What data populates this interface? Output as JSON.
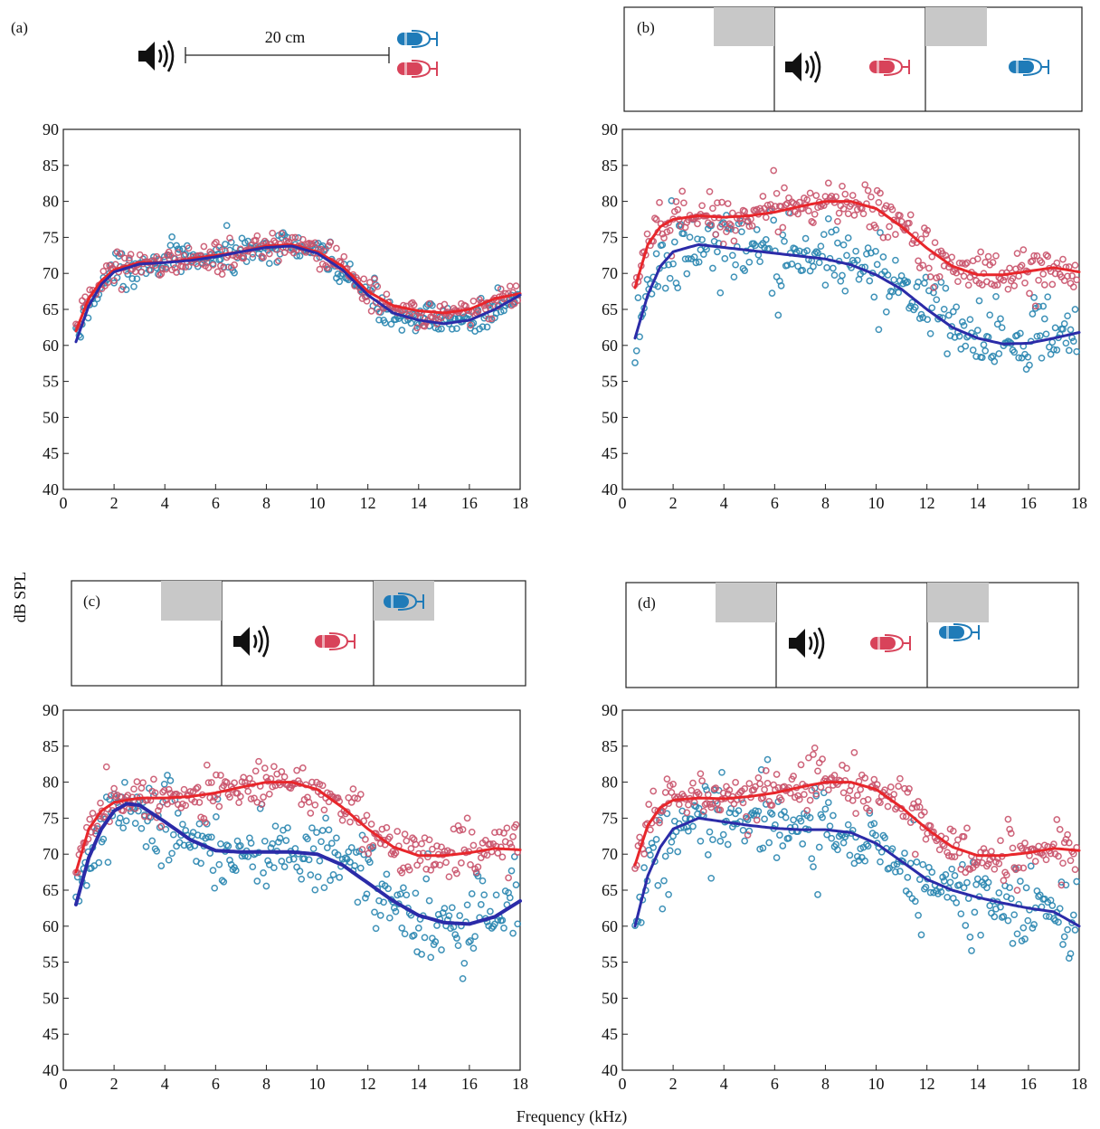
{
  "figure": {
    "ylabel": "dB SPL",
    "xlabel": "Frequency (kHz)",
    "distance_label": "20 cm",
    "colors": {
      "near_mic": "#d8435a",
      "far_mic": "#1f7bb8",
      "near_points": "#c9536b",
      "far_points": "#2a86b0",
      "near_curve": "#e8262b",
      "far_curve": "#2b2ba8",
      "barrier": "#c8c8c8",
      "frame": "#222222"
    },
    "icons": [
      "speaker-icon",
      "microphone-icon"
    ]
  },
  "chart_data": [
    {
      "panel": "(a)",
      "type": "scatter",
      "xlabel": "",
      "ylabel": "",
      "xlim": [
        0,
        18
      ],
      "ylim": [
        40,
        90
      ],
      "xticks": [
        0,
        2,
        4,
        6,
        8,
        10,
        12,
        14,
        16,
        18
      ],
      "yticks": [
        40,
        45,
        50,
        55,
        60,
        65,
        70,
        75,
        80,
        85,
        90
      ],
      "grid": false,
      "series": [
        {
          "color": "red",
          "kind": "fit",
          "x": [
            0.5,
            1,
            1.5,
            2,
            3,
            4,
            5,
            6,
            7,
            8,
            9,
            10,
            11,
            12,
            13,
            14,
            15,
            16,
            17,
            18
          ],
          "y": [
            62,
            66.5,
            69,
            70.5,
            71.5,
            71.5,
            72,
            72.5,
            73,
            73.8,
            74,
            73,
            71,
            67.5,
            65.5,
            64.8,
            64.5,
            65,
            66.5,
            67.2
          ]
        },
        {
          "color": "blue",
          "kind": "fit",
          "x": [
            0.5,
            1,
            1.5,
            2,
            3,
            4,
            5,
            6,
            7,
            8,
            9,
            10,
            11,
            12,
            13,
            14,
            15,
            16,
            17,
            18
          ],
          "y": [
            60.5,
            65.5,
            68.5,
            70.2,
            71.3,
            71.5,
            71.8,
            72.3,
            73,
            73.6,
            73.8,
            72.8,
            70.5,
            67,
            64.5,
            63.5,
            63,
            63.5,
            65,
            67
          ]
        }
      ]
    },
    {
      "panel": "(b)",
      "type": "scatter",
      "xlabel": "",
      "ylabel": "",
      "xlim": [
        0,
        18
      ],
      "ylim": [
        40,
        90
      ],
      "xticks": [
        0,
        2,
        4,
        6,
        8,
        10,
        12,
        14,
        16,
        18
      ],
      "yticks": [
        40,
        45,
        50,
        55,
        60,
        65,
        70,
        75,
        80,
        85,
        90
      ],
      "grid": false,
      "series": [
        {
          "color": "red",
          "kind": "fit",
          "x": [
            0.5,
            1,
            1.5,
            2,
            3,
            4,
            5,
            6,
            7,
            8,
            9,
            10,
            11,
            12,
            13,
            14,
            15,
            16,
            17,
            18
          ],
          "y": [
            68,
            74,
            76.5,
            77.5,
            78,
            77.8,
            78,
            78.5,
            79.3,
            80,
            80,
            79,
            76.5,
            73.5,
            71,
            69.8,
            69.8,
            70.3,
            70.8,
            70.2
          ]
        },
        {
          "color": "blue",
          "kind": "fit",
          "x": [
            0.5,
            1,
            1.5,
            2,
            3,
            4,
            5,
            6,
            7,
            8,
            9,
            10,
            11,
            12,
            13,
            14,
            15,
            16,
            17,
            18
          ],
          "y": [
            61,
            67,
            71,
            73,
            74,
            73.6,
            73.2,
            72.8,
            72.4,
            72,
            71.2,
            69.8,
            67.8,
            65,
            62.5,
            61,
            60.2,
            60.3,
            61,
            61.8
          ]
        }
      ]
    },
    {
      "panel": "(c)",
      "type": "scatter",
      "xlabel": "",
      "ylabel": "",
      "xlim": [
        0,
        18
      ],
      "ylim": [
        40,
        90
      ],
      "xticks": [
        0,
        2,
        4,
        6,
        8,
        10,
        12,
        14,
        16,
        18
      ],
      "yticks": [
        40,
        45,
        50,
        55,
        60,
        65,
        70,
        75,
        80,
        85,
        90
      ],
      "grid": false,
      "series": [
        {
          "color": "red",
          "kind": "fit",
          "x": [
            0.5,
            1,
            1.5,
            2,
            3,
            4,
            5,
            6,
            7,
            8,
            9,
            10,
            11,
            12,
            13,
            14,
            15,
            16,
            17,
            18
          ],
          "y": [
            67.5,
            73.5,
            76,
            77.2,
            77.8,
            77.8,
            78,
            78.5,
            79.3,
            80,
            80,
            79,
            76.5,
            73.5,
            71,
            69.8,
            69.8,
            70.2,
            70.8,
            70.6
          ]
        },
        {
          "color": "blue",
          "kind": "fit",
          "x": [
            0.5,
            1,
            1.5,
            2,
            2.5,
            3,
            4,
            5,
            6,
            7,
            8,
            9,
            10,
            11,
            12,
            13,
            14,
            15,
            16,
            17,
            18
          ],
          "y": [
            63,
            69.5,
            73.5,
            76,
            77,
            76.8,
            74.5,
            72,
            70.5,
            70.3,
            70.3,
            70.3,
            70,
            68.5,
            66,
            63.5,
            61.5,
            60.5,
            60.3,
            61.3,
            63.5
          ]
        }
      ]
    },
    {
      "panel": "(d)",
      "type": "scatter",
      "xlabel": "",
      "ylabel": "",
      "xlim": [
        0,
        18
      ],
      "ylim": [
        40,
        90
      ],
      "xticks": [
        0,
        2,
        4,
        6,
        8,
        10,
        12,
        14,
        16,
        18
      ],
      "yticks": [
        40,
        45,
        50,
        55,
        60,
        65,
        70,
        75,
        80,
        85,
        90
      ],
      "grid": false,
      "series": [
        {
          "color": "red",
          "kind": "fit",
          "x": [
            0.5,
            1,
            1.5,
            2,
            3,
            4,
            5,
            6,
            7,
            8,
            9,
            10,
            11,
            12,
            13,
            14,
            15,
            16,
            17,
            18
          ],
          "y": [
            68.5,
            74,
            76.5,
            77.5,
            77.8,
            77.7,
            78,
            78.5,
            79.3,
            80,
            80,
            79,
            76.5,
            73.5,
            71,
            69.8,
            69.8,
            70.2,
            70.8,
            70.5
          ]
        },
        {
          "color": "blue",
          "kind": "fit",
          "x": [
            0.5,
            1,
            1.5,
            2,
            3,
            4,
            5,
            6,
            7,
            8,
            9,
            10,
            11,
            12,
            13,
            14,
            15,
            16,
            17,
            18
          ],
          "y": [
            60,
            67,
            71,
            73.5,
            75,
            74.5,
            74,
            73.6,
            73.4,
            73.4,
            73,
            71.5,
            69,
            66.5,
            65,
            64,
            63.2,
            62.5,
            62,
            60
          ]
        }
      ]
    }
  ]
}
